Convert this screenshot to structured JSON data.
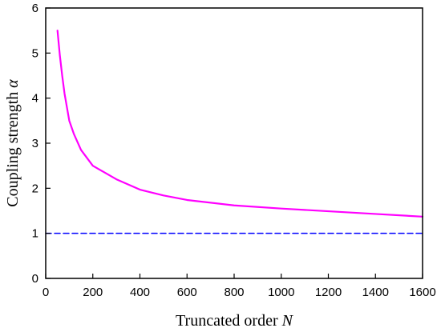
{
  "chart_data": {
    "type": "line",
    "xlabel": "Truncated order",
    "xlabel_var": "N",
    "ylabel": "Coupling strength",
    "ylabel_var": "α",
    "xlim": [
      0,
      1600
    ],
    "ylim": [
      0,
      6
    ],
    "xticks": [
      0,
      200,
      400,
      600,
      800,
      1000,
      1200,
      1400,
      1600
    ],
    "yticks": [
      0,
      1,
      2,
      3,
      4,
      5,
      6
    ],
    "grid": false,
    "series": [
      {
        "color": "#ff00ff",
        "style": "solid",
        "x": [
          50,
          60,
          70,
          80,
          90,
          100,
          120,
          150,
          200,
          300,
          400,
          500,
          600,
          800,
          1000,
          1200,
          1400,
          1600
        ],
        "y": [
          5.5,
          4.95,
          4.5,
          4.1,
          3.8,
          3.5,
          3.2,
          2.85,
          2.5,
          2.2,
          1.97,
          1.84,
          1.74,
          1.62,
          1.55,
          1.49,
          1.43,
          1.37
        ]
      },
      {
        "color": "#0000ff",
        "style": "dashed",
        "x": [
          0,
          1600
        ],
        "y": [
          1,
          1
        ]
      }
    ]
  }
}
